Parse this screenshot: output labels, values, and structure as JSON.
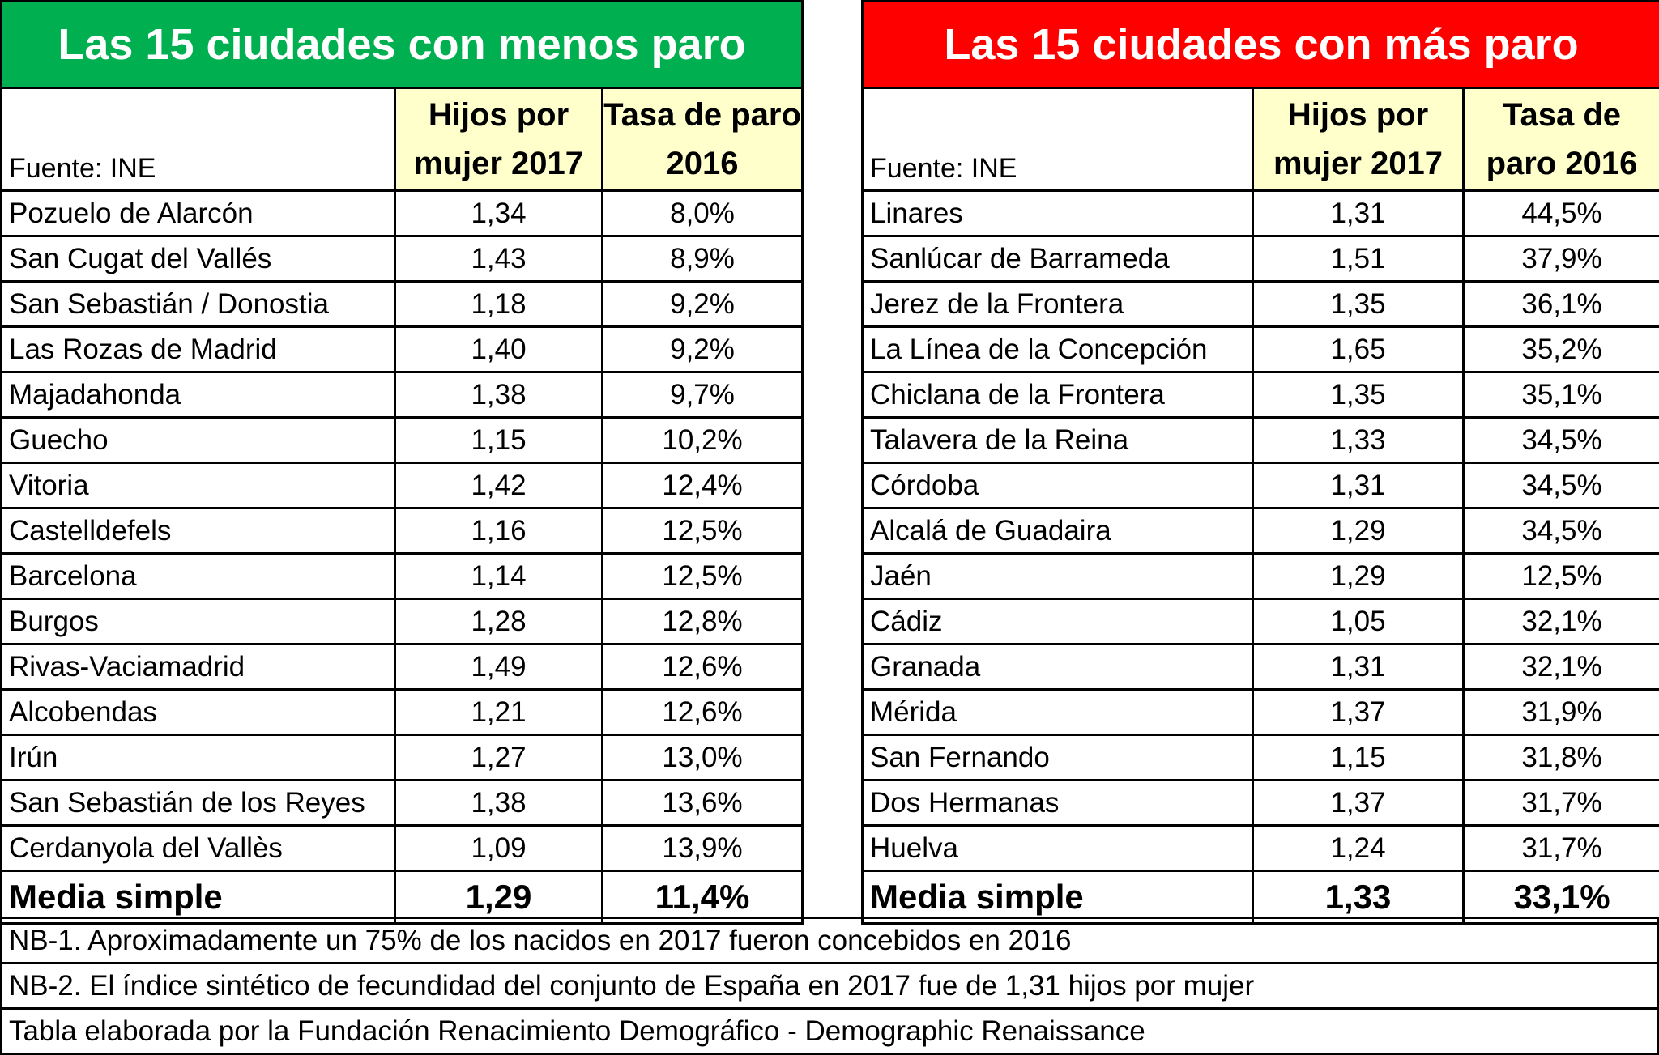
{
  "left": {
    "title": "Las 15 ciudades con menos paro",
    "source": "Fuente: INE",
    "col_hijos": "Hijos por mujer 2017",
    "col_tasa": "Tasa de paro 2016",
    "rows": [
      [
        "Pozuelo de Alarcón",
        "1,34",
        "8,0%"
      ],
      [
        "San Cugat del Vallés",
        "1,43",
        "8,9%"
      ],
      [
        "San Sebastián / Donostia",
        "1,18",
        "9,2%"
      ],
      [
        "Las Rozas de Madrid",
        "1,40",
        "9,2%"
      ],
      [
        "Majadahonda",
        "1,38",
        "9,7%"
      ],
      [
        "Guecho",
        "1,15",
        "10,2%"
      ],
      [
        "Vitoria",
        "1,42",
        "12,4%"
      ],
      [
        "Castelldefels",
        "1,16",
        "12,5%"
      ],
      [
        "Barcelona",
        "1,14",
        "12,5%"
      ],
      [
        "Burgos",
        "1,28",
        "12,8%"
      ],
      [
        "Rivas-Vaciamadrid",
        "1,49",
        "12,6%"
      ],
      [
        "Alcobendas",
        "1,21",
        "12,6%"
      ],
      [
        "Irún",
        "1,27",
        "13,0%"
      ],
      [
        "San Sebastián de los Reyes",
        "1,38",
        "13,6%"
      ],
      [
        "Cerdanyola del Vallès",
        "1,09",
        "13,9%"
      ]
    ],
    "average": [
      "Media simple",
      "1,29",
      "11,4%"
    ]
  },
  "right": {
    "title": "Las 15 ciudades con más paro",
    "source": "Fuente: INE",
    "col_hijos": "Hijos por mujer 2017",
    "col_tasa": "Tasa de paro 2016",
    "rows": [
      [
        "Linares",
        "1,31",
        "44,5%"
      ],
      [
        "Sanlúcar de Barrameda",
        "1,51",
        "37,9%"
      ],
      [
        "Jerez de la Frontera",
        "1,35",
        "36,1%"
      ],
      [
        "La Línea de la Concepción",
        "1,65",
        "35,2%"
      ],
      [
        "Chiclana de la Frontera",
        "1,35",
        "35,1%"
      ],
      [
        "Talavera de la Reina",
        "1,33",
        "34,5%"
      ],
      [
        "Córdoba",
        "1,31",
        "34,5%"
      ],
      [
        "Alcalá de Guadaira",
        "1,29",
        "34,5%"
      ],
      [
        "Jaén",
        "1,29",
        "12,5%"
      ],
      [
        "Cádiz",
        "1,05",
        "32,1%"
      ],
      [
        "Granada",
        "1,31",
        "32,1%"
      ],
      [
        "Mérida",
        "1,37",
        "31,9%"
      ],
      [
        "San Fernando",
        "1,15",
        "31,8%"
      ],
      [
        "Dos Hermanas",
        "1,37",
        "31,7%"
      ],
      [
        "Huelva",
        "1,24",
        "31,7%"
      ]
    ],
    "average": [
      "Media simple",
      "1,33",
      "33,1%"
    ]
  },
  "notes": [
    "NB-1. Aproximadamente un 75% de los nacidos en 2017 fueron concebidos en 2016",
    "NB-2. El índice sintético de fecundidad del conjunto de España en 2017 fue de 1,31 hijos por mujer",
    "Tabla elaborada por la Fundación Renacimiento Demográfico - Demographic Renaissance"
  ],
  "colors": {
    "left_banner": "#00b050",
    "right_banner": "#ff0000",
    "header_fill": "#ffffcc"
  }
}
